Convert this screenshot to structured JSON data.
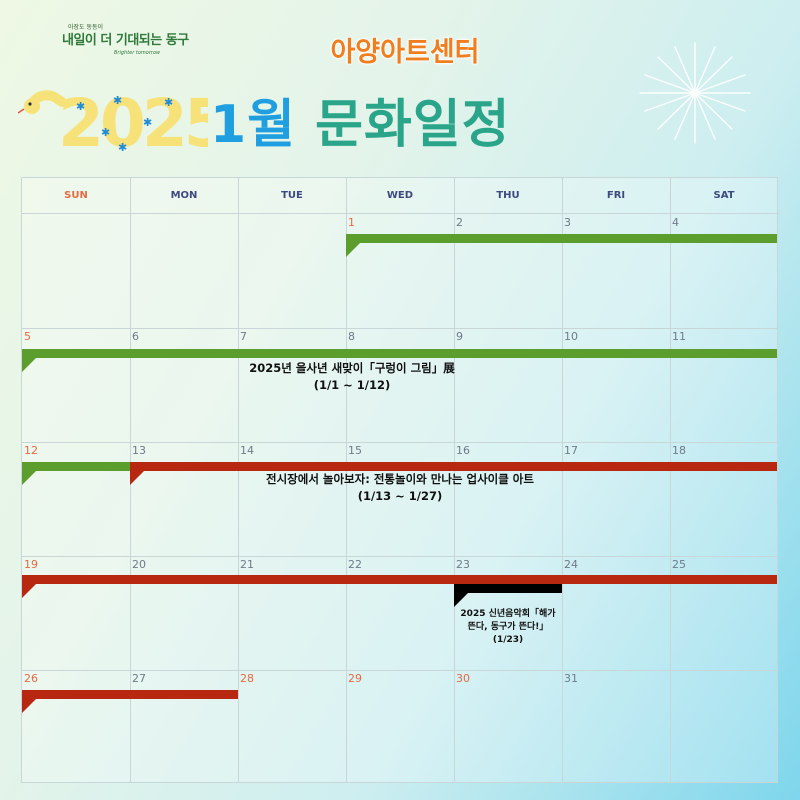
{
  "header": {
    "logo_small": "아장도 동동이",
    "logo_main": "내일이 더 기대되는 동구",
    "logo_sub": "Brighter tomorrow",
    "venue": "아양아트센터",
    "year": "2025",
    "month": "1월",
    "title": "문화일정"
  },
  "calendar": {
    "weekdays": [
      "SUN",
      "MON",
      "TUE",
      "WED",
      "THU",
      "FRI",
      "SAT"
    ],
    "weeks": [
      [
        "",
        "",
        "",
        "1",
        "2",
        "3",
        "4"
      ],
      [
        "5",
        "6",
        "7",
        "8",
        "9",
        "10",
        "11"
      ],
      [
        "12",
        "13",
        "14",
        "15",
        "16",
        "17",
        "18"
      ],
      [
        "19",
        "20",
        "21",
        "22",
        "23",
        "24",
        "25"
      ],
      [
        "26",
        "27",
        "28",
        "29",
        "30",
        "31",
        ""
      ]
    ],
    "red_dates": [
      "1",
      "5",
      "12",
      "19",
      "26",
      "28",
      "29",
      "30"
    ]
  },
  "events": {
    "snake_exhibit": {
      "title": "2025년 을사년 새맞이「구렁이 그림」展",
      "period": "(1/1 ~ 1/12)",
      "color": "#5c9e2d"
    },
    "play_exhibit": {
      "title": "전시장에서 놀아보자: 전통놀이와 만나는 업사이클 아트",
      "period": "(1/13 ~ 1/27)",
      "color": "#b8270f"
    },
    "concert": {
      "title_line1": "2025 신년음악회「해가",
      "title_line2": "뜬다, 동구가 뜬다!」",
      "date": "(1/23)",
      "color": "#000000"
    }
  }
}
